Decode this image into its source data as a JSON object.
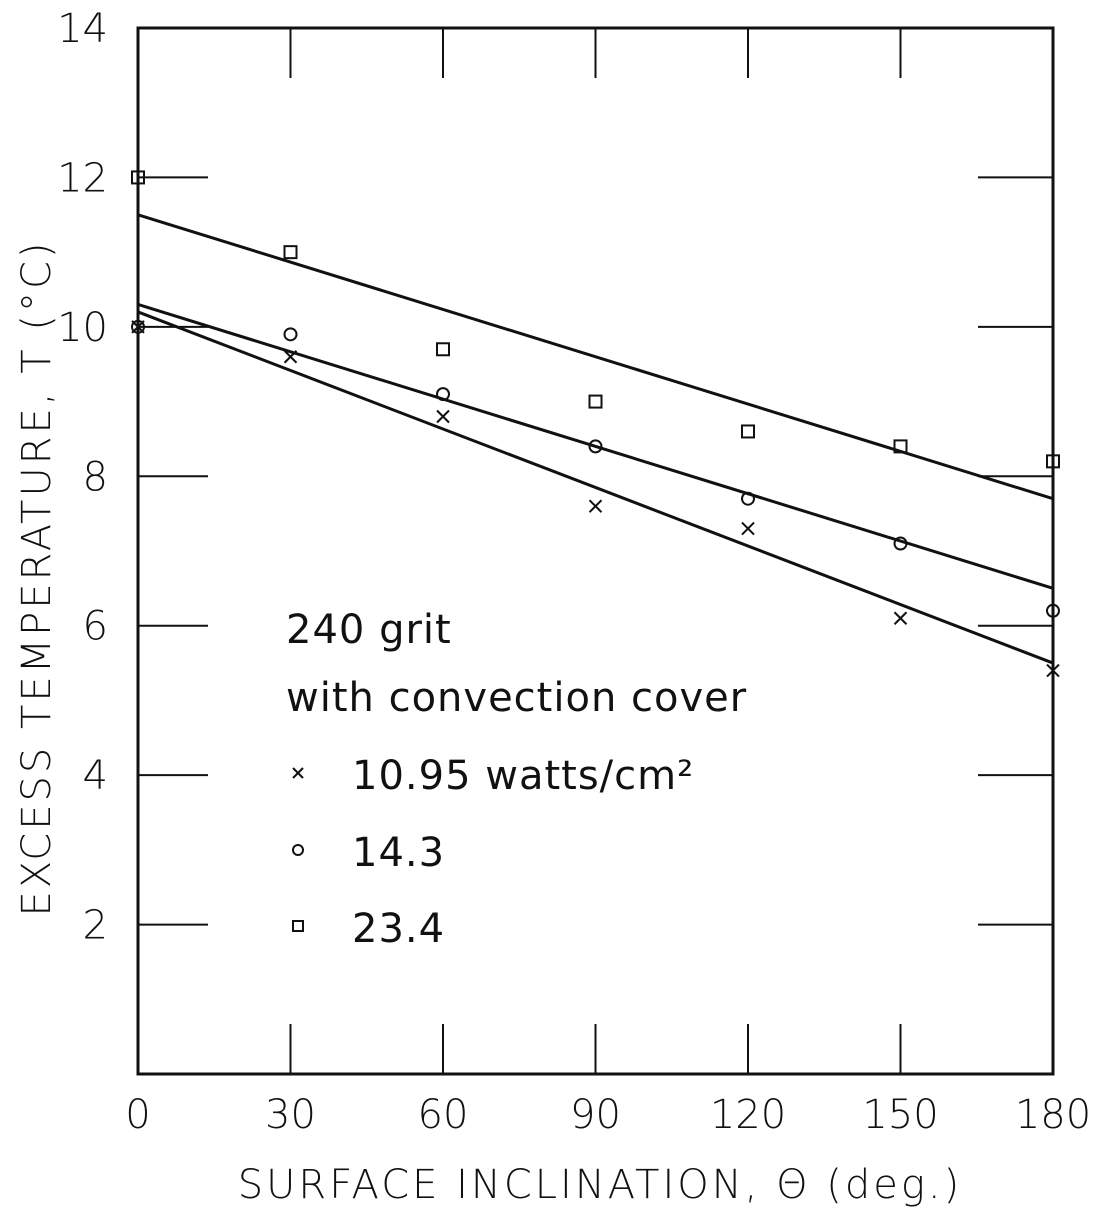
{
  "chart_data": {
    "type": "scatter",
    "title": "",
    "xlabel": "SURFACE INCLINATION, Θ (deg.)",
    "ylabel": "EXCESS TEMPERATURE, T (°C)",
    "xlim": [
      0,
      180
    ],
    "ylim": [
      0,
      14
    ],
    "x_ticks": [
      "0",
      "30",
      "60",
      "90",
      "120",
      "150",
      "180"
    ],
    "y_ticks": [
      "2",
      "4",
      "6",
      "8",
      "10",
      "12",
      "14"
    ],
    "grid": false,
    "annotation_lines": [
      "240 grit",
      "with convection cover"
    ],
    "legend_position": "center-left",
    "x": [
      0,
      30,
      60,
      90,
      120,
      150,
      180
    ],
    "series": [
      {
        "name": "10.95 watts/cm²",
        "marker": "x",
        "values": [
          10.0,
          9.6,
          8.8,
          7.6,
          7.3,
          6.1,
          5.4
        ],
        "fit": [
          10.2,
          5.5
        ]
      },
      {
        "name": "14.3",
        "marker": "circle",
        "values": [
          10.0,
          9.9,
          9.1,
          8.4,
          7.7,
          7.1,
          6.2
        ],
        "fit": [
          10.3,
          6.5
        ]
      },
      {
        "name": "23.4",
        "marker": "square",
        "values": [
          12.0,
          11.0,
          9.7,
          9.0,
          8.6,
          8.4,
          8.2
        ],
        "fit": [
          11.5,
          7.7
        ]
      }
    ]
  }
}
